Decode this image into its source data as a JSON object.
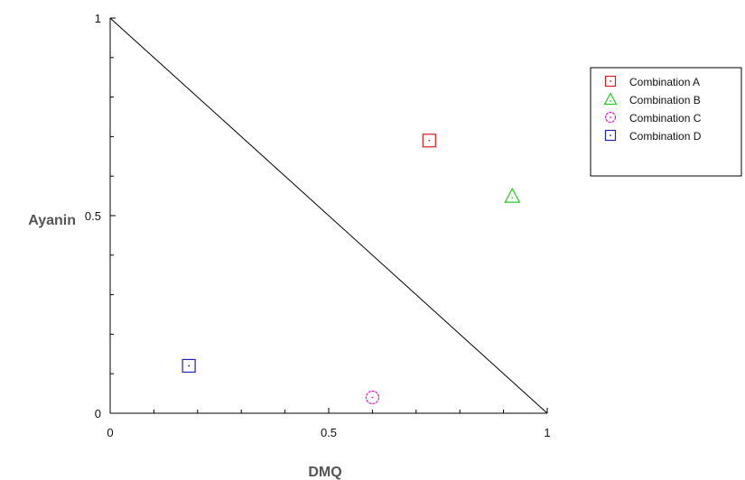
{
  "chart_data": {
    "type": "scatter",
    "title": "",
    "xlabel": "DMQ",
    "ylabel": "Ayanin",
    "xlim": [
      0,
      1
    ],
    "ylim": [
      0,
      1
    ],
    "x_ticks": [
      "0",
      "0.5",
      "1"
    ],
    "y_ticks": [
      "0",
      "0.5",
      "1"
    ],
    "grid": false,
    "legend_position": "top-right outside plot",
    "reference_line": {
      "from": [
        0,
        1
      ],
      "to": [
        1,
        0
      ],
      "color": "#000000"
    },
    "series": [
      {
        "name": "Combination A",
        "marker": "square",
        "color": "#cc2222",
        "x": [
          0.73
        ],
        "y": [
          0.69
        ]
      },
      {
        "name": "Combination B",
        "marker": "triangle",
        "color": "#22cc22",
        "x": [
          0.92
        ],
        "y": [
          0.55
        ]
      },
      {
        "name": "Combination C",
        "marker": "circle",
        "color": "#cc22cc",
        "x": [
          0.6
        ],
        "y": [
          0.04
        ]
      },
      {
        "name": "Combination D",
        "marker": "square",
        "color": "#2222aa",
        "x": [
          0.18
        ],
        "y": [
          0.12
        ]
      }
    ]
  }
}
